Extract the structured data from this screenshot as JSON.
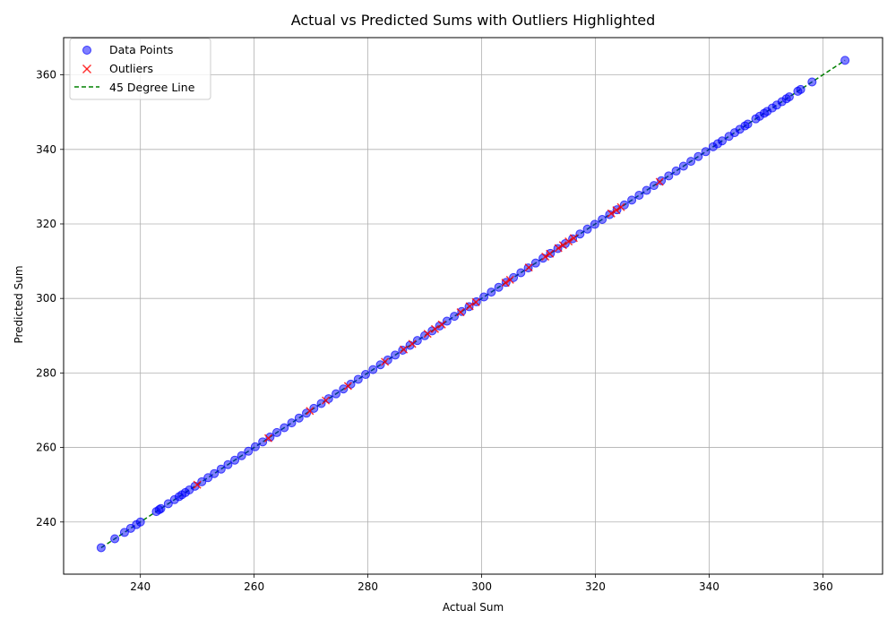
{
  "chart_data": {
    "type": "scatter",
    "title": "Actual vs Predicted Sums with Outliers Highlighted",
    "xlabel": "Actual Sum",
    "ylabel": "Predicted Sum",
    "xlim": [
      226.5,
      370.5
    ],
    "ylim": [
      226.0,
      370.0
    ],
    "xticks": [
      240,
      260,
      280,
      300,
      320,
      340,
      360
    ],
    "yticks": [
      240,
      260,
      280,
      300,
      320,
      340,
      360
    ],
    "grid": true,
    "legend_position": "top-left",
    "series": [
      {
        "name": "Data Points",
        "kind": "scatter",
        "marker": "circle",
        "color": "#0000ff",
        "x": [
          233.1,
          235.5,
          237.2,
          238.3,
          239.3,
          240.0,
          242.8,
          243.3,
          243.6,
          244.9,
          246.0,
          246.8,
          247.3,
          247.9,
          248.6,
          249.6,
          250.8,
          251.9,
          253.0,
          254.2,
          255.4,
          256.6,
          257.8,
          259.0,
          260.2,
          261.5,
          262.8,
          264.0,
          265.3,
          266.6,
          267.9,
          269.2,
          270.5,
          271.8,
          273.1,
          274.4,
          275.7,
          277.0,
          278.3,
          279.6,
          280.9,
          282.2,
          283.5,
          284.8,
          286.1,
          287.4,
          288.7,
          290.0,
          291.3,
          292.6,
          293.9,
          295.2,
          296.5,
          297.8,
          299.1,
          300.4,
          301.7,
          303.0,
          304.3,
          305.6,
          306.9,
          308.2,
          309.5,
          310.8,
          312.1,
          313.4,
          314.7,
          316.0,
          317.3,
          318.6,
          319.9,
          321.2,
          322.5,
          323.8,
          325.1,
          326.4,
          327.7,
          329.0,
          330.3,
          331.6,
          332.9,
          334.2,
          335.5,
          336.8,
          338.1,
          339.4,
          340.7,
          341.5,
          342.3,
          343.5,
          344.5,
          345.4,
          346.3,
          346.8,
          348.2,
          348.9,
          349.7,
          350.2,
          351.1,
          351.9,
          352.8,
          353.6,
          354.1,
          355.6,
          356.1,
          358.1,
          363.9
        ],
        "y": [
          233.1,
          235.5,
          237.2,
          238.3,
          239.3,
          240.0,
          242.8,
          243.3,
          243.6,
          244.9,
          246.0,
          246.8,
          247.3,
          247.9,
          248.6,
          249.6,
          250.8,
          251.9,
          253.0,
          254.2,
          255.4,
          256.6,
          257.8,
          259.0,
          260.2,
          261.5,
          262.8,
          264.0,
          265.3,
          266.6,
          267.9,
          269.2,
          270.5,
          271.8,
          273.1,
          274.4,
          275.7,
          277.0,
          278.3,
          279.6,
          280.9,
          282.2,
          283.5,
          284.8,
          286.1,
          287.4,
          288.7,
          290.0,
          291.3,
          292.6,
          293.9,
          295.2,
          296.5,
          297.8,
          299.1,
          300.4,
          301.7,
          303.0,
          304.3,
          305.6,
          306.9,
          308.2,
          309.5,
          310.8,
          312.1,
          313.4,
          314.7,
          316.0,
          317.3,
          318.6,
          319.9,
          321.2,
          322.5,
          323.8,
          325.1,
          326.4,
          327.7,
          329.0,
          330.3,
          331.6,
          332.9,
          334.2,
          335.5,
          336.8,
          338.1,
          339.4,
          340.7,
          341.5,
          342.3,
          343.5,
          344.5,
          345.4,
          346.3,
          346.8,
          348.2,
          348.9,
          349.7,
          350.2,
          351.1,
          351.9,
          352.8,
          353.6,
          354.1,
          355.6,
          356.1,
          358.1,
          363.9
        ]
      },
      {
        "name": "Outliers",
        "kind": "scatter",
        "marker": "x",
        "color": "#ff0000",
        "x": [
          250.0,
          262.5,
          269.8,
          272.6,
          276.5,
          283.0,
          286.3,
          287.8,
          290.5,
          291.8,
          293.0,
          296.3,
          297.9,
          299.0,
          304.2,
          305.0,
          308.3,
          311.2,
          312.0,
          313.5,
          314.3,
          315.3,
          316.2,
          322.8,
          323.7,
          324.5,
          331.3
        ],
        "y": [
          250.0,
          262.5,
          269.8,
          272.6,
          276.5,
          283.0,
          286.3,
          287.8,
          290.5,
          291.8,
          293.0,
          296.3,
          297.9,
          299.0,
          304.2,
          305.0,
          308.3,
          311.2,
          312.0,
          313.5,
          314.3,
          315.3,
          316.2,
          322.8,
          323.7,
          324.5,
          331.3
        ]
      },
      {
        "name": "45 Degree Line",
        "kind": "line",
        "style": "dashed",
        "color": "#008000",
        "x": [
          233.1,
          363.9
        ],
        "y": [
          233.1,
          363.9
        ]
      }
    ]
  }
}
